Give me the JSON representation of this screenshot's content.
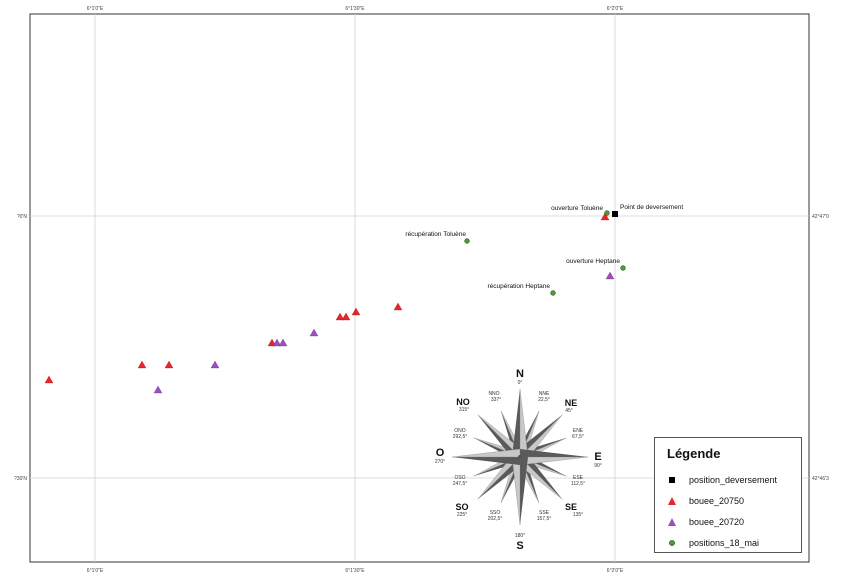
{
  "map": {
    "top_ticks": [
      "6°1'0\"E",
      "6°1'30\"E",
      "6°2'0\"E"
    ],
    "bottom_ticks": [
      "6°1'0\"E",
      "6°1'30\"E",
      "6°2'0\"E"
    ],
    "left_ticks": [
      "?0'N",
      "?30'N"
    ],
    "right_ticks": [
      "42°47'0",
      "42°46'3"
    ],
    "labels": {
      "point_deversement": "Point de deversement",
      "ouverture_toluene": "ouverture Toluène",
      "recuperation_toluene": "récupération Toluène",
      "ouverture_heptane": "ouverture Heptane",
      "recuperation_heptane": "récupération Heptane"
    },
    "colors": {
      "deversement": "#000000",
      "bouee_20750": "#e8262a",
      "bouee_20720": "#9b4fc0",
      "positions_18_mai": "#4c9a3a"
    }
  },
  "compass": {
    "N": "N",
    "NE": "NE",
    "E": "E",
    "SE": "SE",
    "S": "S",
    "SO": "SO",
    "O": "O",
    "NO": "NO",
    "NNE": "NNE",
    "ENE": "ENE",
    "ESE": "ESE",
    "SSE": "SSE",
    "SSO": "SSO",
    "OSO": "OSO",
    "ONO": "ONO",
    "NNO": "NNO",
    "deg_N": "0°",
    "deg_NNE": "22,5°",
    "deg_NE": "45°",
    "deg_ENE": "67,5°",
    "deg_E": "90°",
    "deg_ESE": "112,5°",
    "deg_SE": "135°",
    "deg_SSE": "157,5°",
    "deg_S": "180°",
    "deg_SSO": "202,5°",
    "deg_SO": "225°",
    "deg_OSO": "247,5°",
    "deg_O": "270°",
    "deg_ONO": "292,5°",
    "deg_NO": "315°",
    "deg_NNO": "337°"
  },
  "legend": {
    "title": "Légende",
    "items": [
      {
        "label": "position_deversement",
        "symbol": "square-icon"
      },
      {
        "label": "bouee_20750",
        "symbol": "red-triangle-icon"
      },
      {
        "label": "bouee_20720",
        "symbol": "purple-triangle-icon"
      },
      {
        "label": "positions_18_mai",
        "symbol": "green-circle-icon"
      }
    ]
  }
}
